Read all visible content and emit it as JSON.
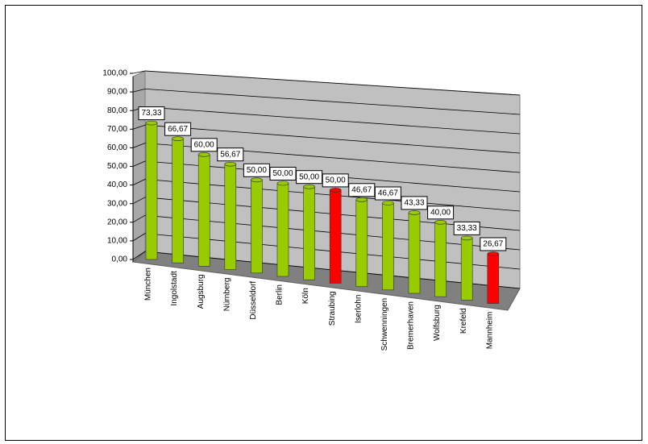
{
  "chart_data": {
    "type": "bar3d",
    "categories": [
      "München",
      "Ingolstadt",
      "Augsburg",
      "Nürnberg",
      "Düsseldorf",
      "Berlin",
      "Köln",
      "Straubing",
      "Iserlohn",
      "Schwenningen",
      "Bremerhaven",
      "Wolfsburg",
      "Krefeld",
      "Mannheim"
    ],
    "values": [
      73.33,
      66.67,
      60.0,
      56.67,
      50.0,
      50.0,
      50.0,
      50.0,
      46.67,
      46.67,
      43.33,
      40.0,
      33.33,
      26.67
    ],
    "value_labels": [
      "73,33",
      "66,67",
      "60,00",
      "56,67",
      "50,00",
      "50,00",
      "50,00",
      "50,00",
      "46,67",
      "46,67",
      "43,33",
      "40,00",
      "33,33",
      "26,67"
    ],
    "colors": [
      "#99cc00",
      "#99cc00",
      "#99cc00",
      "#99cc00",
      "#99cc00",
      "#99cc00",
      "#99cc00",
      "#ff0000",
      "#99cc00",
      "#99cc00",
      "#99cc00",
      "#99cc00",
      "#99cc00",
      "#ff0000"
    ],
    "ylim": [
      0,
      100
    ],
    "yticks": [
      {
        "value": 0,
        "label": "0,00"
      },
      {
        "value": 10,
        "label": "10,00"
      },
      {
        "value": 20,
        "label": "20,00"
      },
      {
        "value": 30,
        "label": "30,00"
      },
      {
        "value": 40,
        "label": "40,00"
      },
      {
        "value": 50,
        "label": "50,00"
      },
      {
        "value": 60,
        "label": "60,00"
      },
      {
        "value": 70,
        "label": "70,00"
      },
      {
        "value": 80,
        "label": "80,00"
      },
      {
        "value": 90,
        "label": "90,00"
      },
      {
        "value": 100,
        "label": "100,00"
      }
    ],
    "grid": true
  }
}
